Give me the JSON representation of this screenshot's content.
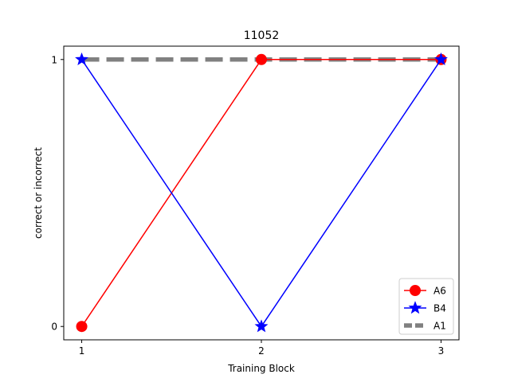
{
  "chart_data": {
    "type": "line",
    "title": "11052",
    "xlabel": "Training Block",
    "ylabel": "correct or incorrect",
    "x": [
      1,
      2,
      3
    ],
    "xlim": [
      0.9,
      3.1
    ],
    "ylim": [
      -0.05,
      1.05
    ],
    "xticks": [
      1,
      2,
      3
    ],
    "yticks": [
      0,
      1
    ],
    "grid": false,
    "legend_position": "bottom-right",
    "series": [
      {
        "name": "A6",
        "values": [
          0,
          1,
          1
        ],
        "color": "#ff0000",
        "marker": "circle",
        "linestyle": "solid"
      },
      {
        "name": "B4",
        "values": [
          1,
          0,
          1
        ],
        "color": "#0000ff",
        "marker": "star",
        "linestyle": "solid"
      },
      {
        "name": "A1",
        "values": [
          1,
          1,
          1
        ],
        "color": "#808080",
        "marker": "none",
        "linestyle": "dashed"
      }
    ]
  }
}
